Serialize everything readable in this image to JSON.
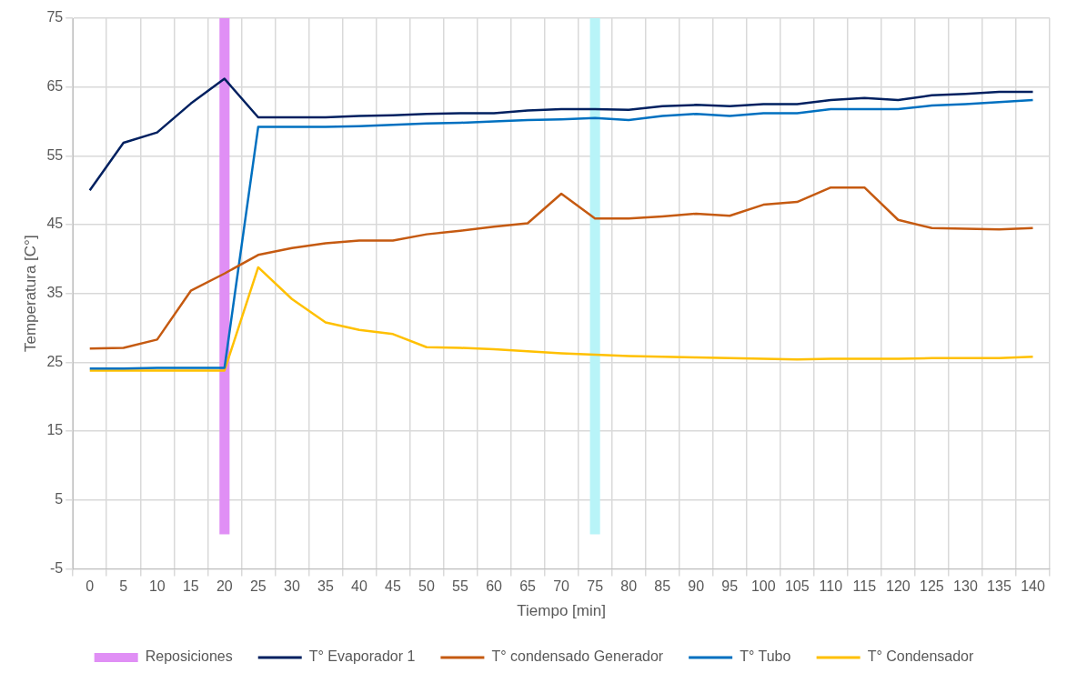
{
  "chart_data": {
    "type": "line",
    "xlabel": "Tiempo [min]",
    "ylabel": "Temperatura [C°]",
    "categories": [
      "0",
      "5",
      "10",
      "15",
      "20",
      "25",
      "30",
      "35",
      "40",
      "45",
      "50",
      "55",
      "60",
      "65",
      "70",
      "75",
      "80",
      "85",
      "90",
      "95",
      "100",
      "105",
      "110",
      "115",
      "120",
      "125",
      "130",
      "135",
      "140"
    ],
    "ylim": [
      -5,
      75
    ],
    "yticks": [
      -5,
      5,
      15,
      25,
      35,
      45,
      55,
      65,
      75
    ],
    "grid": true,
    "legend": "bottom",
    "marker": "none",
    "line_style": "solid",
    "series": [
      {
        "name": "Reposiciones",
        "type": "bar",
        "color": "#e08ff5",
        "colors": [
          null,
          null,
          null,
          null,
          "#e08ff5",
          null,
          null,
          null,
          null,
          null,
          null,
          null,
          null,
          null,
          null,
          "#b8f4f8",
          null,
          null,
          null,
          null,
          null,
          null,
          null,
          null,
          null,
          null,
          null,
          null,
          null
        ],
        "values": [
          null,
          null,
          null,
          null,
          75,
          null,
          null,
          null,
          null,
          null,
          null,
          null,
          null,
          null,
          null,
          75,
          null,
          null,
          null,
          null,
          null,
          null,
          null,
          null,
          null,
          null,
          null,
          null,
          null
        ]
      },
      {
        "name": "T° Evaporador 1",
        "color": "#002060",
        "values": [
          50,
          56.9,
          58.4,
          62.6,
          66.2,
          60.6,
          60.6,
          60.6,
          60.8,
          60.9,
          61.1,
          61.2,
          61.2,
          61.6,
          61.8,
          61.8,
          61.7,
          62.2,
          62.4,
          62.2,
          62.5,
          62.5,
          63.1,
          63.4,
          63.1,
          63.8,
          64.0,
          64.3,
          64.3
        ]
      },
      {
        "name": "T° condensado Generador",
        "color": "#c55a11",
        "values": [
          27.0,
          27.1,
          28.3,
          35.4,
          37.9,
          40.6,
          41.6,
          42.3,
          42.7,
          42.7,
          43.6,
          44.1,
          44.7,
          45.2,
          49.5,
          45.9,
          45.9,
          46.2,
          46.6,
          46.3,
          47.9,
          48.3,
          50.4,
          50.4,
          45.7,
          44.5,
          44.4,
          44.3,
          44.5
        ]
      },
      {
        "name": "T° Tubo",
        "color": "#0070c0",
        "values": [
          24.1,
          24.1,
          24.2,
          24.2,
          24.2,
          59.2,
          59.2,
          59.2,
          59.3,
          59.5,
          59.7,
          59.8,
          60.0,
          60.2,
          60.3,
          60.5,
          60.2,
          60.8,
          61.1,
          60.8,
          61.2,
          61.2,
          61.8,
          61.8,
          61.8,
          62.3,
          62.5,
          62.8,
          63.1
        ]
      },
      {
        "name": "T° Condensador",
        "color": "#ffc000",
        "values": [
          23.8,
          23.8,
          23.8,
          23.8,
          23.8,
          38.8,
          34.2,
          30.8,
          29.7,
          29.1,
          27.2,
          27.1,
          26.9,
          26.6,
          26.3,
          26.1,
          25.9,
          25.8,
          25.7,
          25.6,
          25.5,
          25.4,
          25.5,
          25.5,
          25.5,
          25.6,
          25.6,
          25.6,
          25.8
        ]
      }
    ]
  }
}
